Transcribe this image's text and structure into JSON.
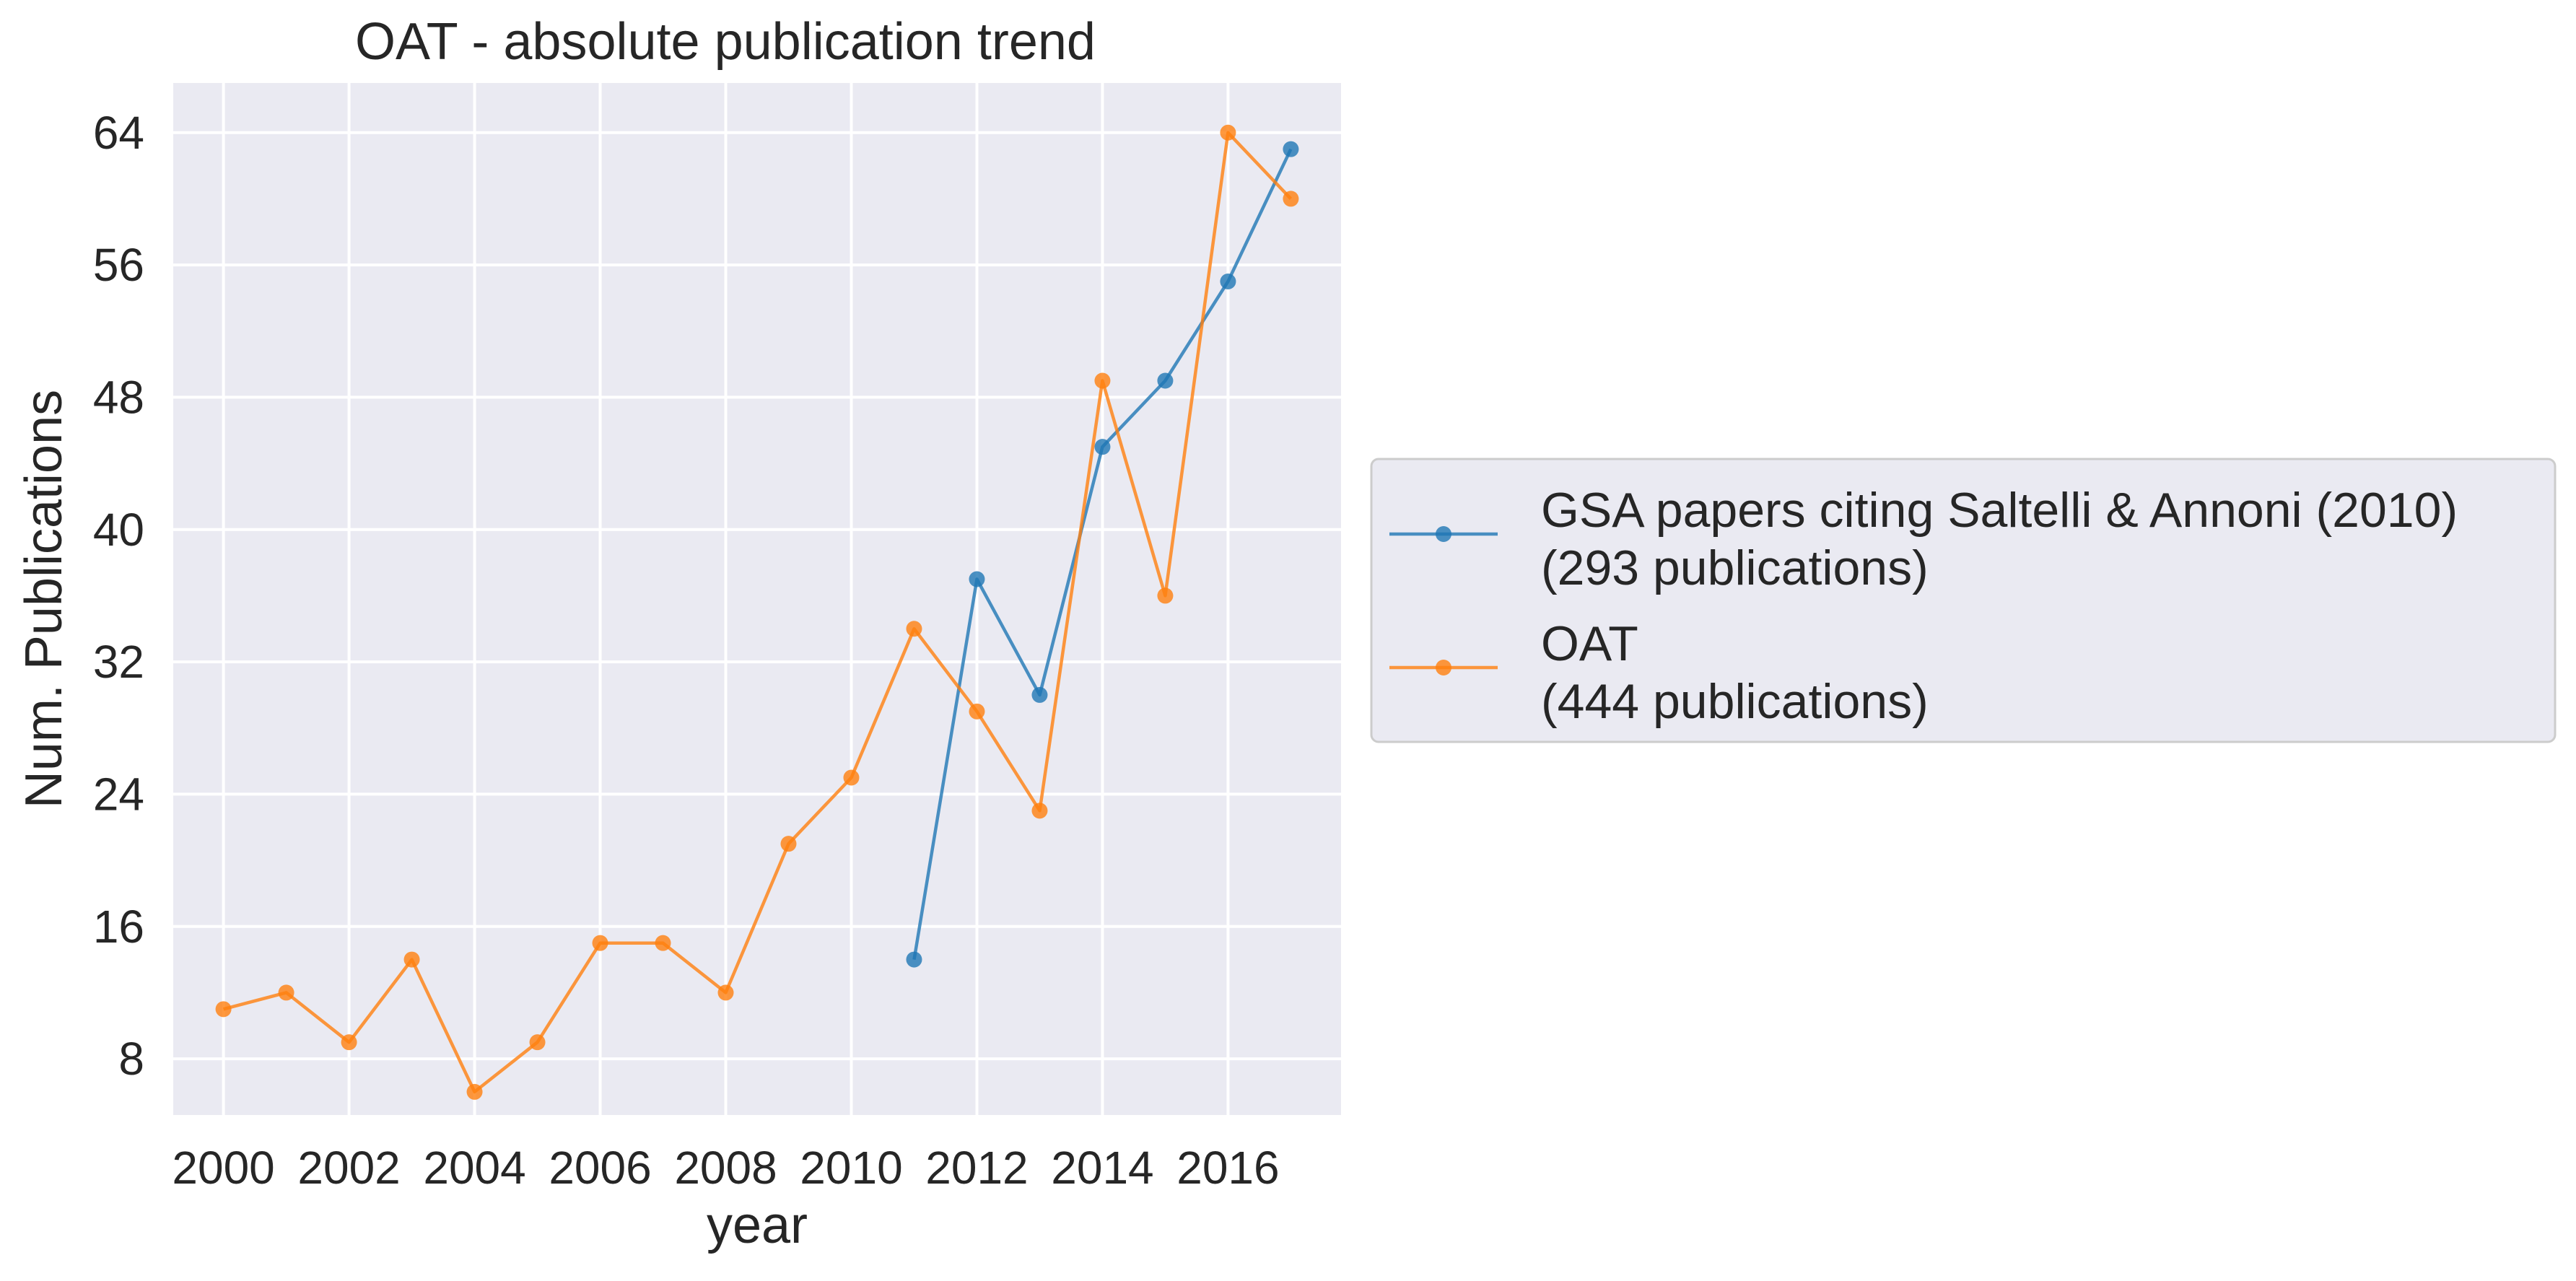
{
  "chart_data": {
    "type": "line",
    "title": "OAT - absolute publication trend",
    "xlabel": "year",
    "ylabel": "Num. Publications",
    "xlim": [
      1999.2,
      2017.8
    ],
    "ylim": [
      4.6,
      67
    ],
    "x_ticks": [
      2000,
      2002,
      2004,
      2006,
      2008,
      2010,
      2012,
      2014,
      2016
    ],
    "y_ticks": [
      8,
      16,
      24,
      32,
      40,
      48,
      56,
      64
    ],
    "grid": true,
    "legend_position": "outside-right",
    "colors": {
      "plot_background": "#eaeaf2",
      "grid": "#ffffff",
      "text": "#262626",
      "legend_background": "#eaeaf2",
      "legend_border": "#cccccc"
    },
    "series": [
      {
        "name": "GSA papers citing Saltelli & Annoni (2010)",
        "legend_sub": "(293 publications)",
        "color": "#1f77b4",
        "marker": "circle",
        "x": [
          2011,
          2012,
          2013,
          2014,
          2015,
          2016,
          2017
        ],
        "y": [
          14,
          37,
          30,
          45,
          49,
          55,
          63
        ]
      },
      {
        "name": "OAT",
        "legend_sub": "(444 publications)",
        "color": "#ff7f0e",
        "marker": "circle",
        "x": [
          2000,
          2001,
          2002,
          2003,
          2004,
          2005,
          2006,
          2007,
          2008,
          2009,
          2010,
          2011,
          2012,
          2013,
          2014,
          2015,
          2016,
          2017
        ],
        "y": [
          11,
          12,
          9,
          14,
          6,
          9,
          15,
          15,
          12,
          21,
          25,
          34,
          29,
          23,
          49,
          36,
          64,
          60
        ]
      }
    ]
  }
}
